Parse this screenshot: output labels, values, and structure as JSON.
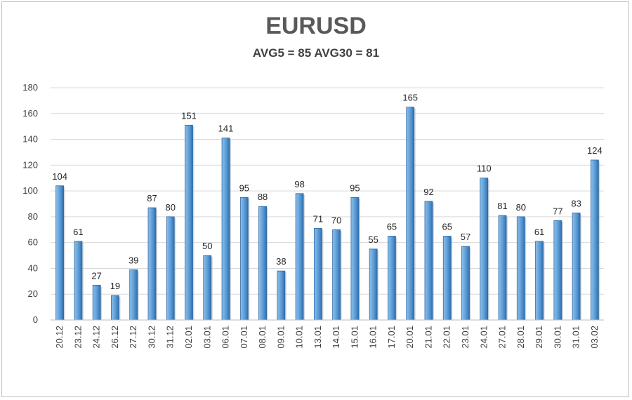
{
  "title": "EURUSD",
  "subtitle": "AVG5 = 85 AVG30 = 81",
  "chart_data": {
    "type": "bar",
    "title": "EURUSD",
    "subtitle": "AVG5 = 85 AVG30 = 81",
    "xlabel": "",
    "ylabel": "",
    "ylim": [
      0,
      180
    ],
    "yticks": [
      0,
      20,
      40,
      60,
      80,
      100,
      120,
      140,
      160,
      180
    ],
    "grid": true,
    "legend": "none",
    "bar_color": "#5b9bd5",
    "categories": [
      "20.12",
      "23.12",
      "24.12",
      "26.12",
      "27.12",
      "30.12",
      "31.12",
      "02.01",
      "03.01",
      "06.01",
      "07.01",
      "08.01",
      "09.01",
      "10.01",
      "13.01",
      "14.01",
      "15.01",
      "16.01",
      "17.01",
      "20.01",
      "21.01",
      "22.01",
      "23.01",
      "24.01",
      "27.01",
      "28.01",
      "29.01",
      "30.01",
      "31.01",
      "03.02"
    ],
    "values": [
      104,
      61,
      27,
      19,
      39,
      87,
      80,
      151,
      50,
      141,
      95,
      88,
      38,
      98,
      71,
      70,
      95,
      55,
      65,
      165,
      92,
      65,
      57,
      110,
      81,
      80,
      61,
      77,
      83,
      124
    ]
  }
}
